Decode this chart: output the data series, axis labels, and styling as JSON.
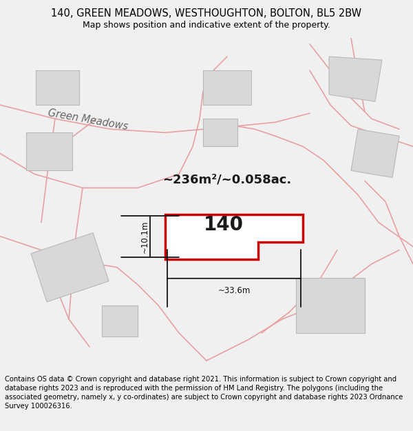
{
  "title": "140, GREEN MEADOWS, WESTHOUGHTON, BOLTON, BL5 2BW",
  "subtitle": "Map shows position and indicative extent of the property.",
  "footer": "Contains OS data © Crown copyright and database right 2021. This information is subject to Crown copyright and database rights 2023 and is reproduced with the permission of HM Land Registry. The polygons (including the associated geometry, namely x, y co-ordinates) are subject to Crown copyright and database rights 2023 Ordnance Survey 100026316.",
  "background_color": "#f0f0f0",
  "map_background": "#f8f8f8",
  "building_fill": "#d8d8d8",
  "building_edge": "#b8b8b8",
  "highlight_color": "#cc0000",
  "road_line_color": "#e8a0a0",
  "road_label": "Green Meadows",
  "area_label": "~236m²/~0.058ac.",
  "dim_width": "~33.6m",
  "dim_height": "~10.1m",
  "plot_number": "140",
  "title_fontsize": 10.5,
  "subtitle_fontsize": 9,
  "footer_fontsize": 7.2,
  "road_label_fontsize": 10.5,
  "area_label_fontsize": 13,
  "plot_num_fontsize": 20,
  "dim_fontsize": 8.5
}
